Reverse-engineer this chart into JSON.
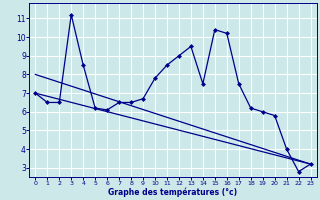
{
  "xlabel": "Graphe des températures (°c)",
  "background_color": "#cce8e8",
  "grid_color": "#ffffff",
  "line_color": "#00008b",
  "x_ticks": [
    0,
    1,
    2,
    3,
    4,
    5,
    6,
    7,
    8,
    9,
    10,
    11,
    12,
    13,
    14,
    15,
    16,
    17,
    18,
    19,
    20,
    21,
    22,
    23
  ],
  "y_ticks": [
    3,
    4,
    5,
    6,
    7,
    8,
    9,
    10,
    11
  ],
  "ylim": [
    2.5,
    11.8
  ],
  "xlim": [
    -0.5,
    23.5
  ],
  "series1_x": [
    0,
    1,
    2,
    3,
    4,
    5,
    6,
    7,
    8,
    9,
    10,
    11,
    12,
    13,
    14,
    15,
    16,
    17,
    18,
    19,
    20,
    21,
    22,
    23
  ],
  "series1_y": [
    7.0,
    6.5,
    6.5,
    11.2,
    8.5,
    6.2,
    6.1,
    6.5,
    6.5,
    6.7,
    7.8,
    8.5,
    9.0,
    9.5,
    7.5,
    10.4,
    10.2,
    7.5,
    6.2,
    6.0,
    5.8,
    4.0,
    2.8,
    3.2
  ],
  "trend1_x": [
    0,
    23
  ],
  "trend1_y": [
    7.0,
    3.2
  ],
  "trend2_x": [
    0,
    23
  ],
  "trend2_y": [
    8.0,
    3.2
  ]
}
